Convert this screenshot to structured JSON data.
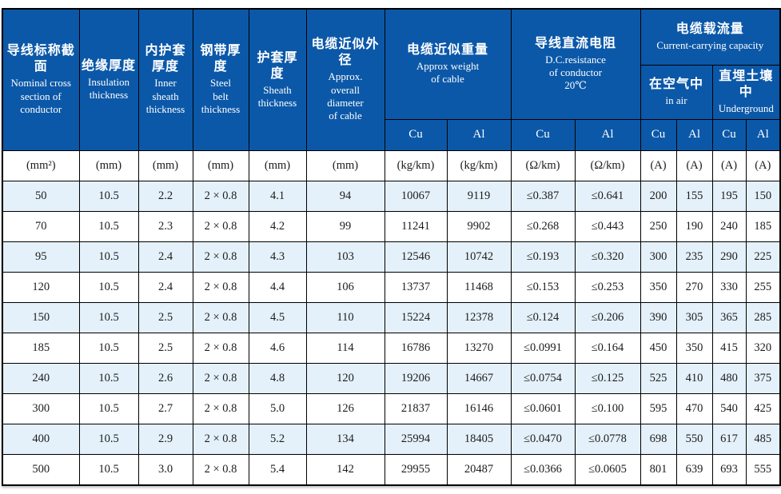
{
  "colors": {
    "header_blue": "#0b58a8",
    "alt_row_blue": "#e4f1fa",
    "border": "#000000",
    "header_text": "#ffffff",
    "body_text": "#1c1c1c"
  },
  "table": {
    "header": {
      "columns": [
        {
          "zh": "导线标称截面",
          "en": "Nominal cross\nsection of\nconductor"
        },
        {
          "zh": "绝缘厚度",
          "en": "Insulation\nthickness"
        },
        {
          "zh": "内护套\n厚度",
          "en": "Inner\nsheath\nthickness"
        },
        {
          "zh": "钢带厚度",
          "en": "Steel\nbelt\nthickness"
        },
        {
          "zh": "护套厚度",
          "en": "Sheath\nthickness"
        },
        {
          "zh": "电缆近似外径",
          "en": "Approx.\noverall\ndiameter\nof cable"
        }
      ],
      "groups": {
        "weight": {
          "zh": "电缆近似重量",
          "en": "Approx weight\nof cable"
        },
        "resistance": {
          "zh": "导线直流电阻",
          "en": "D.C.resistance\nof conductor\n20℃"
        },
        "capacity": {
          "zh": "电缆载流量",
          "en": "Current-carrying capacity"
        },
        "in_air": {
          "zh": "在空气中",
          "en": "in air"
        },
        "underground": {
          "zh": "直埋土壤中",
          "en": "Underground"
        }
      },
      "metals": [
        "Cu",
        "Al",
        "Cu",
        "Al",
        "Cu",
        "Al",
        "Cu",
        "Al"
      ]
    },
    "units": [
      "(mm²)",
      "(mm)",
      "(mm)",
      "(mm)",
      "(mm)",
      "(mm)",
      "(kg/km)",
      "(kg/km)",
      "(Ω/km)",
      "(Ω/km)",
      "(A)",
      "(A)",
      "(A)",
      "(A)"
    ],
    "rows": [
      [
        "50",
        "10.5",
        "2.2",
        "2 × 0.8",
        "4.1",
        "94",
        "10067",
        "9119",
        "≤0.387",
        "≤0.641",
        "200",
        "155",
        "195",
        "150"
      ],
      [
        "70",
        "10.5",
        "2.3",
        "2 × 0.8",
        "4.2",
        "99",
        "11241",
        "9902",
        "≤0.268",
        "≤0.443",
        "250",
        "190",
        "240",
        "185"
      ],
      [
        "95",
        "10.5",
        "2.4",
        "2 × 0.8",
        "4.3",
        "103",
        "12546",
        "10742",
        "≤0.193",
        "≤0.320",
        "300",
        "235",
        "290",
        "225"
      ],
      [
        "120",
        "10.5",
        "2.4",
        "2 × 0.8",
        "4.4",
        "106",
        "13737",
        "11468",
        "≤0.153",
        "≤0.253",
        "350",
        "270",
        "330",
        "255"
      ],
      [
        "150",
        "10.5",
        "2.5",
        "2 × 0.8",
        "4.5",
        "110",
        "15224",
        "12378",
        "≤0.124",
        "≤0.206",
        "390",
        "305",
        "365",
        "285"
      ],
      [
        "185",
        "10.5",
        "2.5",
        "2 × 0.8",
        "4.6",
        "114",
        "16786",
        "13270",
        "≤0.0991",
        "≤0.164",
        "450",
        "350",
        "415",
        "320"
      ],
      [
        "240",
        "10.5",
        "2.6",
        "2 × 0.8",
        "4.8",
        "120",
        "19206",
        "14667",
        "≤0.0754",
        "≤0.125",
        "525",
        "410",
        "480",
        "375"
      ],
      [
        "300",
        "10.5",
        "2.7",
        "2 × 0.8",
        "5.0",
        "126",
        "21837",
        "16146",
        "≤0.0601",
        "≤0.100",
        "595",
        "470",
        "540",
        "425"
      ],
      [
        "400",
        "10.5",
        "2.9",
        "2 × 0.8",
        "5.2",
        "134",
        "25994",
        "18405",
        "≤0.0470",
        "≤0.0778",
        "698",
        "550",
        "617",
        "485"
      ],
      [
        "500",
        "10.5",
        "3.0",
        "2 × 0.8",
        "5.4",
        "142",
        "29955",
        "20487",
        "≤0.0366",
        "≤0.0605",
        "801",
        "639",
        "693",
        "555"
      ]
    ]
  }
}
